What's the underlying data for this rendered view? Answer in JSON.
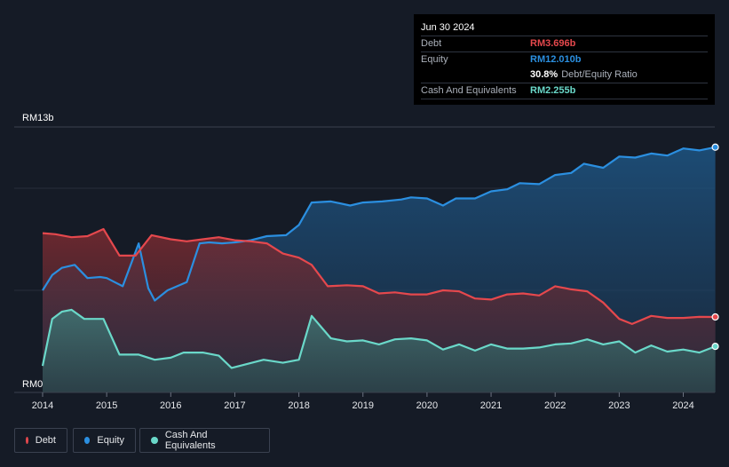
{
  "tooltip": {
    "date": "Jun 30 2024",
    "debt_label": "Debt",
    "debt_value": "RM3.696b",
    "equity_label": "Equity",
    "equity_value": "RM12.010b",
    "ratio_value": "30.8%",
    "ratio_label": "Debt/Equity Ratio",
    "cash_label": "Cash And Equivalents",
    "cash_value": "RM2.255b"
  },
  "legend": {
    "debt": "Debt",
    "equity": "Equity",
    "cash": "Cash And Equivalents"
  },
  "colors": {
    "debt": "#e5484d",
    "equity": "#2b8fe0",
    "cash": "#6ad8c9",
    "background": "#151b26"
  },
  "chart_data": {
    "type": "area",
    "y_top_label": "RM13b",
    "y_bottom_label": "RM0",
    "x_tick_labels": [
      "2014",
      "2015",
      "2016",
      "2017",
      "2018",
      "2019",
      "2020",
      "2021",
      "2022",
      "2023",
      "2024"
    ],
    "x_ticks": [
      2014,
      2015,
      2016,
      2017,
      2018,
      2019,
      2020,
      2021,
      2022,
      2023,
      2024
    ],
    "xlim": [
      2013.6,
      2024.5
    ],
    "ylim": [
      0,
      13
    ],
    "unit": "RM billions",
    "grid": true,
    "series": [
      {
        "name": "Equity",
        "color_key": "equity",
        "points": [
          [
            2014.0,
            5.0
          ],
          [
            2014.15,
            5.75
          ],
          [
            2014.3,
            6.1
          ],
          [
            2014.5,
            6.25
          ],
          [
            2014.7,
            5.6
          ],
          [
            2014.9,
            5.65
          ],
          [
            2015.0,
            5.6
          ],
          [
            2015.25,
            5.2
          ],
          [
            2015.5,
            7.3
          ],
          [
            2015.65,
            5.1
          ],
          [
            2015.75,
            4.5
          ],
          [
            2015.95,
            5.0
          ],
          [
            2016.25,
            5.4
          ],
          [
            2016.45,
            7.3
          ],
          [
            2016.6,
            7.35
          ],
          [
            2016.8,
            7.3
          ],
          [
            2017.0,
            7.35
          ],
          [
            2017.25,
            7.45
          ],
          [
            2017.5,
            7.65
          ],
          [
            2017.8,
            7.7
          ],
          [
            2018.0,
            8.2
          ],
          [
            2018.2,
            9.3
          ],
          [
            2018.5,
            9.35
          ],
          [
            2018.8,
            9.15
          ],
          [
            2019.0,
            9.3
          ],
          [
            2019.3,
            9.35
          ],
          [
            2019.6,
            9.45
          ],
          [
            2019.75,
            9.55
          ],
          [
            2020.0,
            9.5
          ],
          [
            2020.25,
            9.15
          ],
          [
            2020.45,
            9.5
          ],
          [
            2020.75,
            9.5
          ],
          [
            2021.0,
            9.85
          ],
          [
            2021.25,
            9.95
          ],
          [
            2021.45,
            10.25
          ],
          [
            2021.75,
            10.2
          ],
          [
            2022.0,
            10.65
          ],
          [
            2022.25,
            10.75
          ],
          [
            2022.45,
            11.2
          ],
          [
            2022.75,
            11.0
          ],
          [
            2023.0,
            11.55
          ],
          [
            2023.25,
            11.5
          ],
          [
            2023.5,
            11.7
          ],
          [
            2023.75,
            11.6
          ],
          [
            2024.0,
            11.95
          ],
          [
            2024.25,
            11.85
          ],
          [
            2024.5,
            12.01
          ]
        ]
      },
      {
        "name": "Debt",
        "color_key": "debt",
        "points": [
          [
            2014.0,
            7.8
          ],
          [
            2014.2,
            7.75
          ],
          [
            2014.45,
            7.6
          ],
          [
            2014.7,
            7.65
          ],
          [
            2014.95,
            8.0
          ],
          [
            2015.2,
            6.7
          ],
          [
            2015.45,
            6.7
          ],
          [
            2015.7,
            7.7
          ],
          [
            2016.0,
            7.5
          ],
          [
            2016.25,
            7.4
          ],
          [
            2016.5,
            7.5
          ],
          [
            2016.75,
            7.6
          ],
          [
            2017.0,
            7.45
          ],
          [
            2017.25,
            7.4
          ],
          [
            2017.5,
            7.3
          ],
          [
            2017.75,
            6.8
          ],
          [
            2018.0,
            6.6
          ],
          [
            2018.2,
            6.25
          ],
          [
            2018.45,
            5.2
          ],
          [
            2018.75,
            5.25
          ],
          [
            2019.0,
            5.2
          ],
          [
            2019.25,
            4.85
          ],
          [
            2019.5,
            4.9
          ],
          [
            2019.75,
            4.8
          ],
          [
            2020.0,
            4.8
          ],
          [
            2020.25,
            5.0
          ],
          [
            2020.5,
            4.95
          ],
          [
            2020.75,
            4.6
          ],
          [
            2021.0,
            4.55
          ],
          [
            2021.25,
            4.8
          ],
          [
            2021.5,
            4.85
          ],
          [
            2021.75,
            4.75
          ],
          [
            2022.0,
            5.2
          ],
          [
            2022.25,
            5.05
          ],
          [
            2022.5,
            4.95
          ],
          [
            2022.75,
            4.4
          ],
          [
            2023.0,
            3.6
          ],
          [
            2023.2,
            3.35
          ],
          [
            2023.5,
            3.75
          ],
          [
            2023.75,
            3.65
          ],
          [
            2024.0,
            3.65
          ],
          [
            2024.25,
            3.7
          ],
          [
            2024.5,
            3.696
          ]
        ]
      },
      {
        "name": "Cash And Equivalents",
        "color_key": "cash",
        "points": [
          [
            2014.0,
            1.3
          ],
          [
            2014.15,
            3.6
          ],
          [
            2014.3,
            3.95
          ],
          [
            2014.45,
            4.05
          ],
          [
            2014.65,
            3.6
          ],
          [
            2014.95,
            3.6
          ],
          [
            2015.2,
            1.85
          ],
          [
            2015.5,
            1.85
          ],
          [
            2015.75,
            1.6
          ],
          [
            2016.0,
            1.7
          ],
          [
            2016.2,
            1.95
          ],
          [
            2016.5,
            1.95
          ],
          [
            2016.75,
            1.8
          ],
          [
            2016.95,
            1.2
          ],
          [
            2017.2,
            1.4
          ],
          [
            2017.45,
            1.6
          ],
          [
            2017.75,
            1.45
          ],
          [
            2018.0,
            1.6
          ],
          [
            2018.2,
            3.75
          ],
          [
            2018.5,
            2.65
          ],
          [
            2018.75,
            2.5
          ],
          [
            2019.0,
            2.55
          ],
          [
            2019.25,
            2.35
          ],
          [
            2019.5,
            2.6
          ],
          [
            2019.75,
            2.65
          ],
          [
            2020.0,
            2.55
          ],
          [
            2020.25,
            2.1
          ],
          [
            2020.5,
            2.35
          ],
          [
            2020.75,
            2.05
          ],
          [
            2021.0,
            2.35
          ],
          [
            2021.25,
            2.15
          ],
          [
            2021.5,
            2.15
          ],
          [
            2021.75,
            2.2
          ],
          [
            2022.0,
            2.35
          ],
          [
            2022.25,
            2.4
          ],
          [
            2022.5,
            2.6
          ],
          [
            2022.75,
            2.35
          ],
          [
            2023.0,
            2.5
          ],
          [
            2023.25,
            1.95
          ],
          [
            2023.5,
            2.3
          ],
          [
            2023.75,
            2.0
          ],
          [
            2024.0,
            2.1
          ],
          [
            2024.25,
            1.95
          ],
          [
            2024.5,
            2.255
          ]
        ]
      }
    ]
  }
}
